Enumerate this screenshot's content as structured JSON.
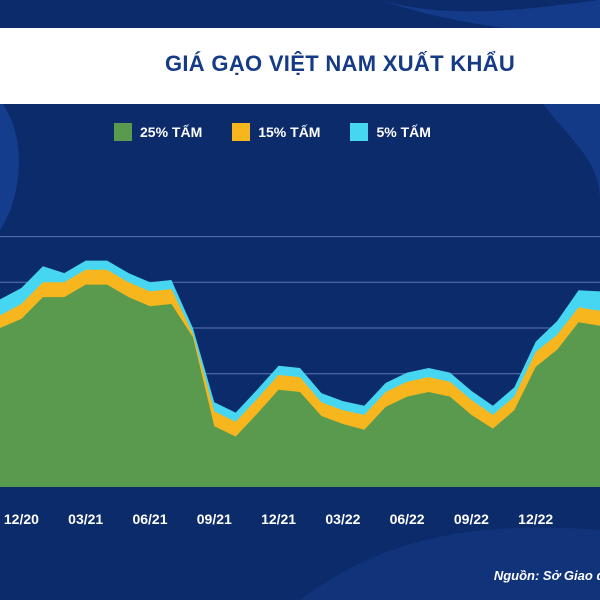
{
  "chart_data": {
    "type": "area",
    "title": "GIÁ GẠO VIỆT NAM XUẤT KHẨU",
    "source": "Nguồn: Sở Giao dị",
    "legend_position": "top",
    "grid": true,
    "categories": [
      "12/20",
      "03/21",
      "06/21",
      "09/21",
      "12/21",
      "03/22",
      "06/22",
      "09/22",
      "12/22"
    ],
    "x": [
      0,
      1,
      2,
      3,
      4,
      5,
      6,
      7,
      8,
      9,
      10,
      11,
      12,
      13,
      14,
      15,
      16,
      17,
      18,
      19,
      20,
      21,
      22,
      23,
      24,
      25,
      26,
      27,
      28
    ],
    "tick_positions": [
      1,
      4,
      7,
      10,
      13,
      16,
      19,
      22,
      25
    ],
    "series": [
      {
        "name": "25% TẤM",
        "color": "#5a9a4e",
        "values": [
          480,
          488,
          507,
          507,
          518,
          518,
          507,
          499,
          501,
          472,
          394,
          385,
          405,
          426,
          424,
          403,
          396,
          391,
          411,
          420,
          424,
          420,
          404,
          392,
          408,
          446,
          461,
          485,
          482
        ]
      },
      {
        "name": "15% TẤM",
        "color": "#f7b51e",
        "values": [
          11,
          13,
          13,
          13,
          13,
          13,
          13,
          13,
          13,
          3,
          13,
          13,
          13,
          13,
          13,
          12,
          12,
          13,
          13,
          13,
          13,
          13,
          13,
          12,
          12,
          13,
          13,
          13,
          13
        ]
      },
      {
        "name": "5% TẤM",
        "color": "#47d6f2",
        "values": [
          14,
          14,
          14,
          8,
          8,
          8,
          8,
          8,
          8,
          5,
          8,
          8,
          8,
          8,
          8,
          8,
          8,
          8,
          8,
          8,
          8,
          8,
          8,
          8,
          8,
          9,
          12,
          15,
          17
        ]
      }
    ],
    "ylim": [
      340,
      620
    ]
  },
  "colors": {
    "background": "#0c2b6b",
    "title": "#163b86",
    "band": "#ffffff",
    "grid": "#5d77b2"
  }
}
